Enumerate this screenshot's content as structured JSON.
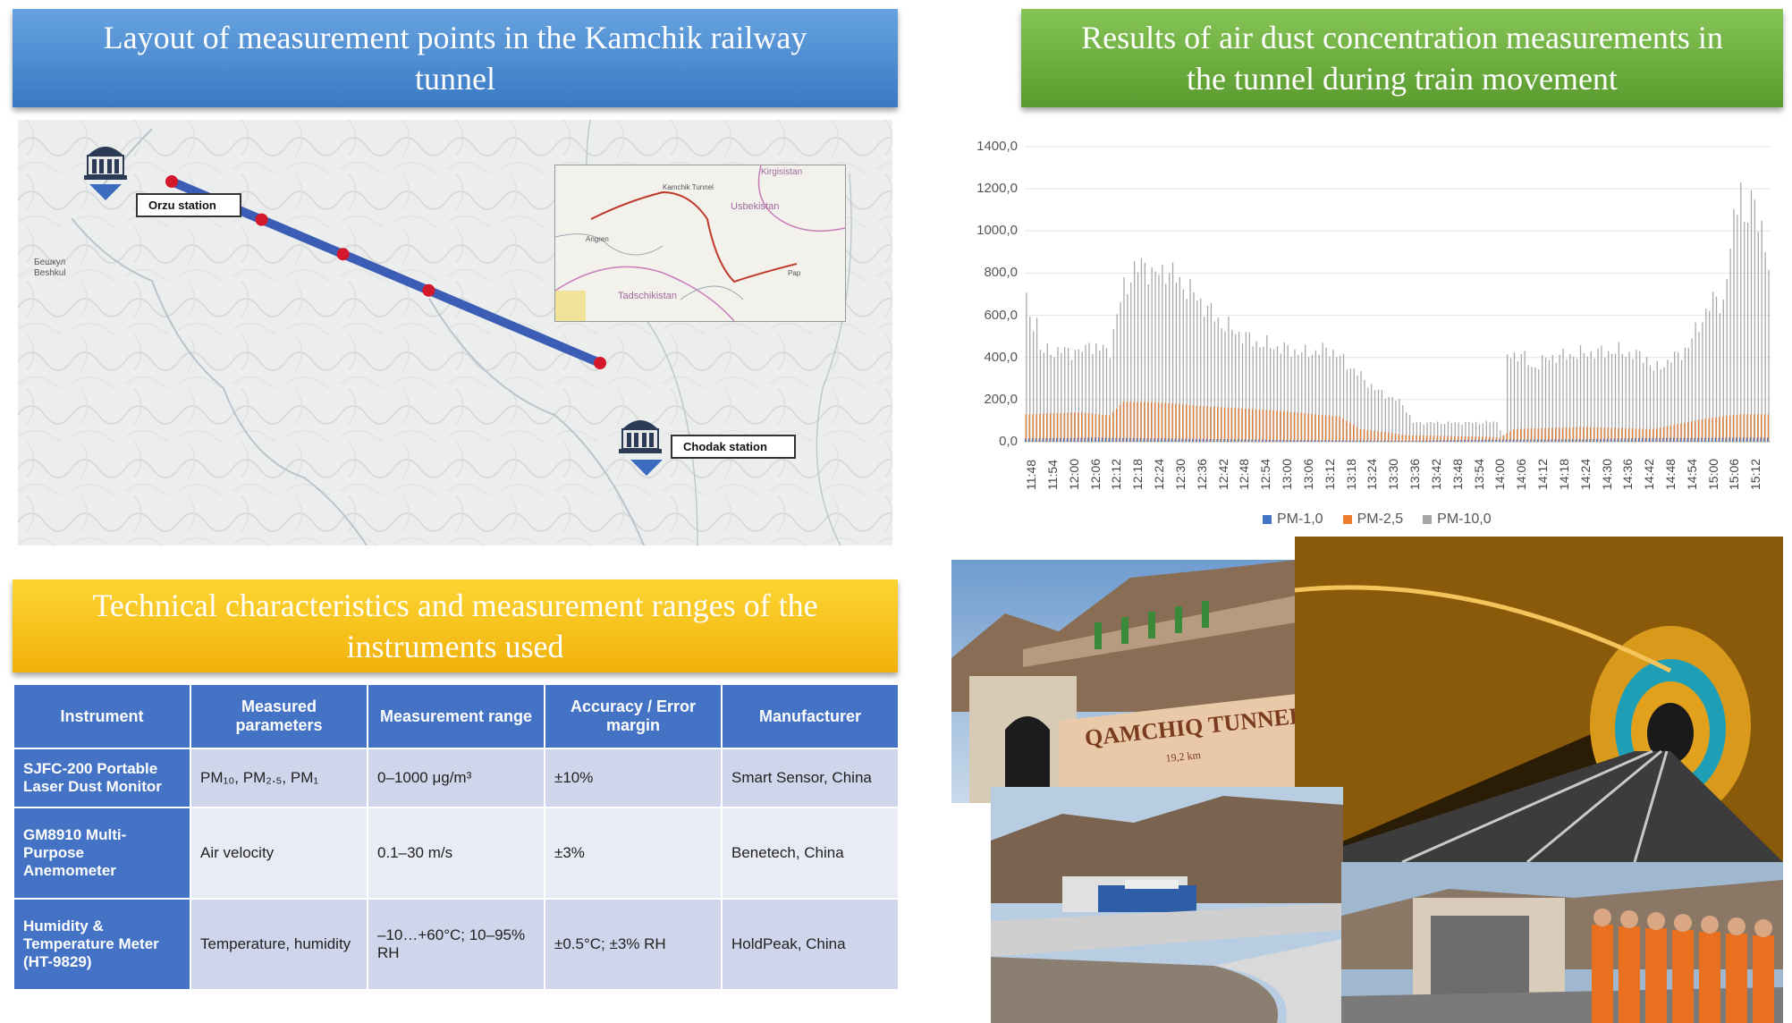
{
  "banners": {
    "layout_title_line1": "Layout of measurement points in the Kamchik railway",
    "layout_title_line2": "tunnel",
    "results_title_line1": "Results of air dust concentration measurements in",
    "results_title_line2": "the tunnel during train movement",
    "tech_title_line1": "Technical characteristics and measurement ranges of the",
    "tech_title_line2": "instruments used"
  },
  "map": {
    "station_left": "Orzu station",
    "station_right": "Chodak station",
    "village_label_1": "Бешкул",
    "village_label_2": "Beshkul",
    "inset_labels": {
      "kyrgyzstan": "Kirgisistan",
      "uzbekistan": "Usbekistan",
      "tajikistan": "Tadschikistan",
      "angren": "Angren",
      "pap": "Pap",
      "kamchik": "Kamchik Tunnel"
    },
    "measurement_points": 5
  },
  "chart_data": {
    "type": "bar",
    "title": "",
    "xlabel": "",
    "ylabel": "",
    "ylim": [
      0,
      1400
    ],
    "y_ticks": [
      "0,0",
      "200,0",
      "400,0",
      "600,0",
      "800,0",
      "1000,0",
      "1200,0",
      "1400,0"
    ],
    "x_tick_labels": [
      "11:48",
      "11:54",
      "12:00",
      "12:06",
      "12:12",
      "12:18",
      "12:24",
      "12:30",
      "12:36",
      "12:42",
      "12:48",
      "12:54",
      "13:00",
      "13:06",
      "13:12",
      "13:18",
      "13:24",
      "13:30",
      "13:36",
      "13:42",
      "13:48",
      "13:54",
      "14:00",
      "14:06",
      "14:12",
      "14:18",
      "14:24",
      "14:30",
      "14:36",
      "14:42",
      "14:48",
      "14:54",
      "15:00",
      "15:06",
      "15:12"
    ],
    "legend_position": "bottom",
    "series": [
      {
        "name": "PM-1,0",
        "color": "#4472c4",
        "anchors": [
          [
            0,
            15
          ],
          [
            20,
            20
          ],
          [
            40,
            15
          ],
          [
            60,
            12
          ],
          [
            80,
            8
          ],
          [
            100,
            6
          ],
          [
            110,
            5
          ],
          [
            130,
            10
          ],
          [
            160,
            12
          ],
          [
            180,
            18
          ],
          [
            205,
            20
          ]
        ]
      },
      {
        "name": "PM-2,5",
        "color": "#ed7d31",
        "anchors": [
          [
            0,
            130
          ],
          [
            15,
            140
          ],
          [
            24,
            125
          ],
          [
            28,
            190
          ],
          [
            40,
            185
          ],
          [
            50,
            170
          ],
          [
            70,
            150
          ],
          [
            90,
            120
          ],
          [
            96,
            60
          ],
          [
            110,
            30
          ],
          [
            130,
            25
          ],
          [
            136,
            20
          ],
          [
            140,
            60
          ],
          [
            160,
            70
          ],
          [
            180,
            60
          ],
          [
            195,
            110
          ],
          [
            205,
            130
          ]
        ]
      },
      {
        "name": "PM-10,0",
        "color": "#a5a5a5",
        "anchors": [
          [
            0,
            680
          ],
          [
            1,
            560
          ],
          [
            3,
            590
          ],
          [
            4,
            430
          ],
          [
            17,
            430
          ],
          [
            18,
            500
          ],
          [
            19,
            440
          ],
          [
            24,
            440
          ],
          [
            28,
            740
          ],
          [
            34,
            860
          ],
          [
            36,
            780
          ],
          [
            40,
            820
          ],
          [
            48,
            700
          ],
          [
            56,
            560
          ],
          [
            66,
            470
          ],
          [
            80,
            420
          ],
          [
            87,
            440
          ],
          [
            90,
            400
          ],
          [
            100,
            250
          ],
          [
            108,
            180
          ],
          [
            111,
            90
          ],
          [
            130,
            90
          ],
          [
            135,
            95
          ],
          [
            136,
            60
          ],
          [
            137,
            30
          ],
          [
            138,
            400
          ],
          [
            142,
            420
          ],
          [
            145,
            350
          ],
          [
            150,
            400
          ],
          [
            160,
            420
          ],
          [
            170,
            430
          ],
          [
            178,
            400
          ],
          [
            180,
            340
          ],
          [
            186,
            400
          ],
          [
            190,
            450
          ],
          [
            193,
            560
          ],
          [
            198,
            690
          ],
          [
            200,
            650
          ],
          [
            202,
            900
          ],
          [
            204,
            1180
          ],
          [
            205,
            1250
          ],
          [
            206,
            1000
          ],
          [
            209,
            1180
          ],
          [
            212,
            900
          ],
          [
            213,
            800
          ]
        ]
      }
    ]
  },
  "table": {
    "headers": [
      "Instrument",
      "Measured parameters",
      "Measurement range",
      "Accuracy / Error margin",
      "Manufacturer"
    ],
    "rows": [
      [
        "SJFC-200 Portable Laser Dust Monitor",
        "PM₁₀, PM₂.₅, PM₁",
        "0–1000 μg/m³",
        "±10%",
        "Smart Sensor, China"
      ],
      [
        "GM8910 Multi-Purpose Anemometer",
        "Air velocity",
        "0.1–30 m/s",
        "±3%",
        "Benetech, China"
      ],
      [
        "Humidity & Temperature Meter (HT-9829)",
        "Temperature, humidity",
        "–10…+60°C; 10–95% RH",
        "±0.5°C; ±3% RH",
        "HoldPeak, China"
      ]
    ]
  },
  "photos": {
    "portal_sign": "QAMCHIQ TUNNELI",
    "portal_sub": "19,2 km"
  }
}
